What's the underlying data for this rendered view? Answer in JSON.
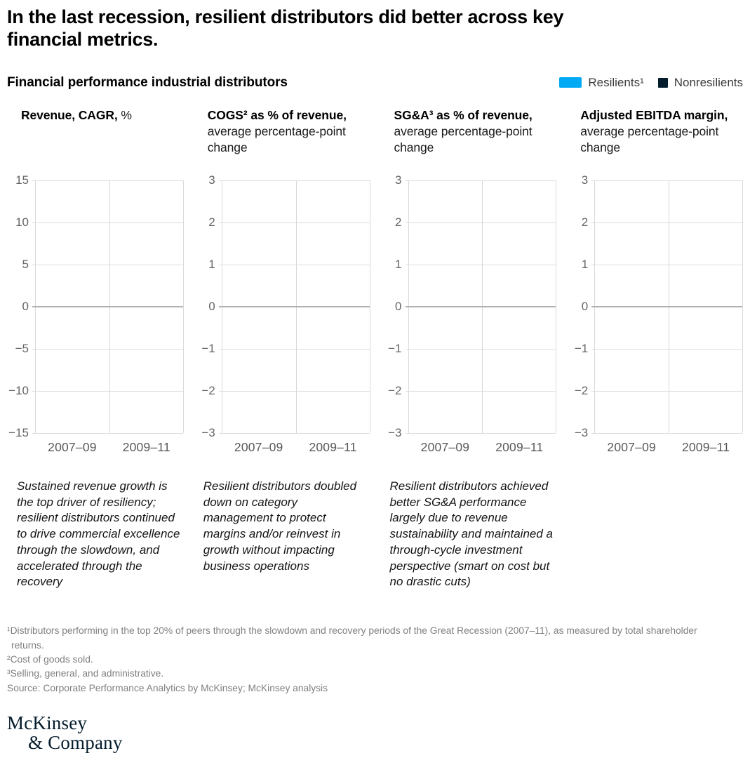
{
  "page": {
    "title": "In the last recession, resilient distributors did better across key financial metrics.",
    "subtitle": "Financial performance industrial distributors",
    "background_color": "#ffffff"
  },
  "legend": {
    "items": [
      {
        "label": "Resilients¹",
        "color": "#00a9f4"
      },
      {
        "label": "Nonresilients",
        "color": "#051c2c"
      }
    ]
  },
  "panels": [
    {
      "heading_bold": "Revenue, CAGR,",
      "heading_rest": " %"
    },
    {
      "heading_bold": "COGS² as % of revenue,",
      "heading_rest": " average percentage-point change"
    },
    {
      "heading_bold": "SG&A³ as % of revenue,",
      "heading_rest": " average percentage-point change"
    },
    {
      "heading_bold": "Adjusted EBITDA margin,",
      "heading_rest": " average percentage-point change"
    }
  ],
  "chart_data": [
    {
      "type": "bar",
      "title": "Revenue, CAGR, %",
      "categories": [
        "2007–09",
        "2009–11"
      ],
      "ylim": [
        -15,
        15
      ],
      "yticks": [
        15,
        10,
        5,
        0,
        -5,
        -10,
        -15
      ],
      "series": [
        {
          "name": "Resilients¹",
          "values": []
        },
        {
          "name": "Nonresilients",
          "values": []
        }
      ],
      "bars_rendered": false,
      "grid": "horizontal",
      "zero_line": true,
      "legend_position": "top-right"
    },
    {
      "type": "bar",
      "title": "COGS² as % of revenue, average percentage-point change",
      "categories": [
        "2007–09",
        "2009–11"
      ],
      "ylim": [
        -3,
        3
      ],
      "yticks": [
        3,
        2,
        1,
        0,
        -1,
        -2,
        -3
      ],
      "series": [
        {
          "name": "Resilients¹",
          "values": []
        },
        {
          "name": "Nonresilients",
          "values": []
        }
      ],
      "bars_rendered": false,
      "grid": "horizontal",
      "zero_line": true,
      "legend_position": "top-right"
    },
    {
      "type": "bar",
      "title": "SG&A³ as % of revenue, average percentage-point change",
      "categories": [
        "2007–09",
        "2009–11"
      ],
      "ylim": [
        -3,
        3
      ],
      "yticks": [
        3,
        2,
        1,
        0,
        -1,
        -2,
        -3
      ],
      "series": [
        {
          "name": "Resilients¹",
          "values": []
        },
        {
          "name": "Nonresilients",
          "values": []
        }
      ],
      "bars_rendered": false,
      "grid": "horizontal",
      "zero_line": true,
      "legend_position": "top-right"
    },
    {
      "type": "bar",
      "title": "Adjusted EBITDA margin, average percentage-point change",
      "categories": [
        "2007–09",
        "2009–11"
      ],
      "ylim": [
        -3,
        3
      ],
      "yticks": [
        3,
        2,
        1,
        0,
        -1,
        -2,
        -3
      ],
      "series": [
        {
          "name": "Resilients¹",
          "values": []
        },
        {
          "name": "Nonresilients",
          "values": []
        }
      ],
      "bars_rendered": false,
      "grid": "horizontal",
      "zero_line": true,
      "legend_position": "top-right"
    }
  ],
  "annotations": [
    "Sustained revenue growth is the top driver of resiliency; resilient distributors continued to drive commercial excellence through the slowdown, and accelerated through the recovery",
    "Resilient distributors doubled down on category management to protect margins and/or reinvest in growth without impacting business operations",
    "Resilient distributors achieved better SG&A performance largely due to revenue sustainability and maintained a through-cycle investment perspective (smart on cost but no drastic cuts)"
  ],
  "footnotes": {
    "line1": "¹Distributors performing in the top 20% of peers through the slowdown and recovery periods of the Great Recession (2007–11), as measured by total shareholder returns.",
    "line2": "²Cost of goods sold.",
    "line3": "³Selling, general, and administrative.",
    "line4": "Source: Corporate Performance Analytics by McKinsey; McKinsey analysis"
  },
  "logo": {
    "line1": "McKinsey",
    "line2": "& Company"
  }
}
